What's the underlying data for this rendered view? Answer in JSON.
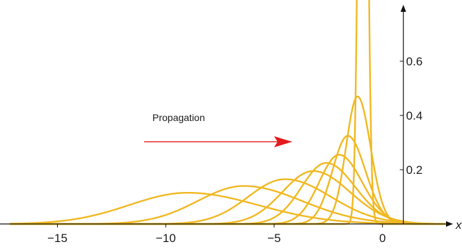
{
  "chart_data": {
    "type": "line",
    "title": "",
    "xlabel": "x",
    "ylabel": "",
    "xlim": [
      -17.2,
      2.9
    ],
    "ylim": [
      0,
      0.8
    ],
    "x_ticks": [
      -15,
      -10,
      -5,
      0
    ],
    "x_tick_labels": [
      "−15",
      "−10",
      "−5",
      "0"
    ],
    "y_ticks": [
      0.2,
      0.4,
      0.6
    ],
    "y_tick_labels": [
      "0.2",
      "0.4",
      "0.6"
    ],
    "grid": false,
    "annotation": {
      "text": "Propagation",
      "arrow_from_x": -11.0,
      "arrow_to_x": -4.2,
      "arrow_y": 0.303
    },
    "series_color": "#f0b822",
    "arrow_color": "#e41a1c",
    "series": [
      {
        "peak_x": -9.0,
        "peak_y": 0.115,
        "left_width": 3.8,
        "right_width": 4.6
      },
      {
        "peak_x": -6.4,
        "peak_y": 0.14,
        "left_width": 3.0,
        "right_width": 3.8
      },
      {
        "peak_x": -4.5,
        "peak_y": 0.165,
        "left_width": 2.4,
        "right_width": 3.0
      },
      {
        "peak_x": -3.2,
        "peak_y": 0.195,
        "left_width": 2.0,
        "right_width": 2.4
      },
      {
        "peak_x": -2.6,
        "peak_y": 0.225,
        "left_width": 1.6,
        "right_width": 1.9
      },
      {
        "peak_x": -2.0,
        "peak_y": 0.255,
        "left_width": 1.3,
        "right_width": 1.5
      },
      {
        "peak_x": -1.6,
        "peak_y": 0.325,
        "left_width": 1.0,
        "right_width": 1.15
      },
      {
        "peak_x": -1.15,
        "peak_y": 0.47,
        "left_width": 0.75,
        "right_width": 0.85
      },
      {
        "peak_x": -0.9,
        "peak_y": 3.0,
        "left_width": 0.25,
        "right_width": 0.25
      }
    ]
  }
}
